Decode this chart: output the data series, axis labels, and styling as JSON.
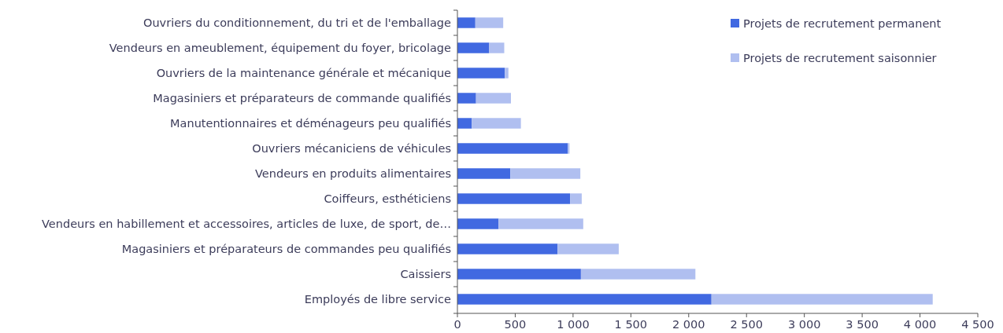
{
  "chart_data": {
    "type": "bar",
    "orientation": "horizontal",
    "stacked": true,
    "categories": [
      "Ouvriers du conditionnement, du tri et de l'emballage",
      "Vendeurs en ameublement, équipement du foyer, bricolage",
      "Ouvriers de la maintenance générale et mécanique",
      "Magasiniers et préparateurs de commande qualifiés",
      "Manutentionnaires et déménageurs peu qualifiés",
      "Ouvriers mécaniciens de véhicules",
      "Vendeurs en produits alimentaires",
      "Coiffeurs, esthéticiens",
      "Vendeurs en habillement et accessoires, articles de luxe, de sport, de…",
      "Magasiniers et préparateurs de commandes peu qualifiés",
      "Caissiers",
      "Employés de libre service"
    ],
    "series": [
      {
        "name": "Projets de recrutement permanent",
        "color": "#4169e1",
        "values": [
          155,
          275,
          410,
          161,
          125,
          954,
          457,
          974,
          356,
          866,
          1068,
          2197
        ]
      },
      {
        "name": "Projets de recrutement saisonnier",
        "color": "#b0bff0",
        "values": [
          241,
          130,
          31,
          302,
          424,
          15,
          606,
          101,
          732,
          529,
          990,
          1913
        ]
      }
    ],
    "xlim": [
      0,
      4500
    ],
    "xticks": [
      0,
      500,
      {
        "value": 1000,
        "label": "1 000"
      },
      {
        "value": 1500,
        "label": "1 500"
      },
      {
        "value": 2000,
        "label": "2 000"
      },
      {
        "value": 2500,
        "label": "2 500"
      },
      {
        "value": 3000,
        "label": "3 000"
      },
      {
        "value": 3500,
        "label": "3 500"
      },
      {
        "value": 4000,
        "label": "4 000"
      },
      {
        "value": 4500,
        "label": "4 500"
      }
    ],
    "grid": false,
    "legend": "top right"
  }
}
